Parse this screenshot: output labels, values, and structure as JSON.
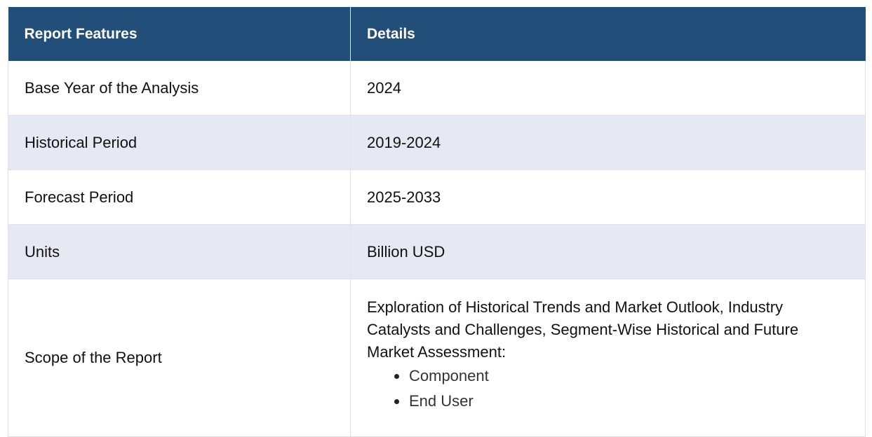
{
  "table": {
    "headers": [
      "Report Features",
      "Details"
    ],
    "rows": [
      {
        "feature": "Base Year of the Analysis",
        "detail": "2024"
      },
      {
        "feature": "Historical Period",
        "detail": "2019-2024"
      },
      {
        "feature": "Forecast Period",
        "detail": "2025-2033"
      },
      {
        "feature": "Units",
        "detail": "Billion USD"
      },
      {
        "feature": "Scope of the Report",
        "detail": "Exploration of Historical Trends and Market Outlook, Industry Catalysts and Challenges, Segment-Wise Historical and Future Market Assessment:",
        "list": [
          "Component",
          "End User"
        ]
      }
    ]
  },
  "colors": {
    "header_bg": "#224f79",
    "alt_row_bg": "#e6e8f4",
    "border": "#dfe2ea"
  }
}
